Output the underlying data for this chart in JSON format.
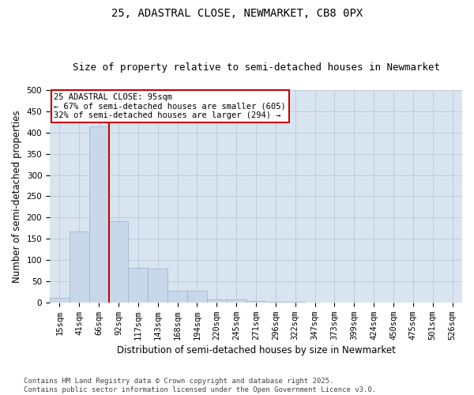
{
  "title": "25, ADASTRAL CLOSE, NEWMARKET, CB8 0PX",
  "subtitle": "Size of property relative to semi-detached houses in Newmarket",
  "xlabel": "Distribution of semi-detached houses by size in Newmarket",
  "ylabel": "Number of semi-detached properties",
  "categories": [
    "15sqm",
    "41sqm",
    "66sqm",
    "92sqm",
    "117sqm",
    "143sqm",
    "168sqm",
    "194sqm",
    "220sqm",
    "245sqm",
    "271sqm",
    "296sqm",
    "322sqm",
    "347sqm",
    "373sqm",
    "399sqm",
    "424sqm",
    "450sqm",
    "475sqm",
    "501sqm",
    "526sqm"
  ],
  "values": [
    10,
    168,
    415,
    192,
    82,
    80,
    28,
    28,
    7,
    7,
    4,
    2,
    2,
    0,
    0,
    0,
    0,
    0,
    0,
    0,
    0
  ],
  "bar_color": "#c8d8ea",
  "bar_edge_color": "#9ab0c8",
  "grid_color": "#c0ccd8",
  "bg_color": "#d8e4f0",
  "vline_color": "#cc0000",
  "vline_x_index": 2,
  "annotation_title": "25 ADASTRAL CLOSE: 95sqm",
  "annotation_line1": "← 67% of semi-detached houses are smaller (605)",
  "annotation_line2": "32% of semi-detached houses are larger (294) →",
  "annotation_box_color": "#ffffff",
  "annotation_border_color": "#cc0000",
  "ylim": [
    0,
    500
  ],
  "yticks": [
    0,
    50,
    100,
    150,
    200,
    250,
    300,
    350,
    400,
    450,
    500
  ],
  "footer1": "Contains HM Land Registry data © Crown copyright and database right 2025.",
  "footer2": "Contains public sector information licensed under the Open Government Licence v3.0.",
  "title_fontsize": 10,
  "subtitle_fontsize": 9,
  "axis_label_fontsize": 8.5,
  "tick_fontsize": 7.5,
  "annotation_fontsize": 7.5,
  "footer_fontsize": 6.5
}
